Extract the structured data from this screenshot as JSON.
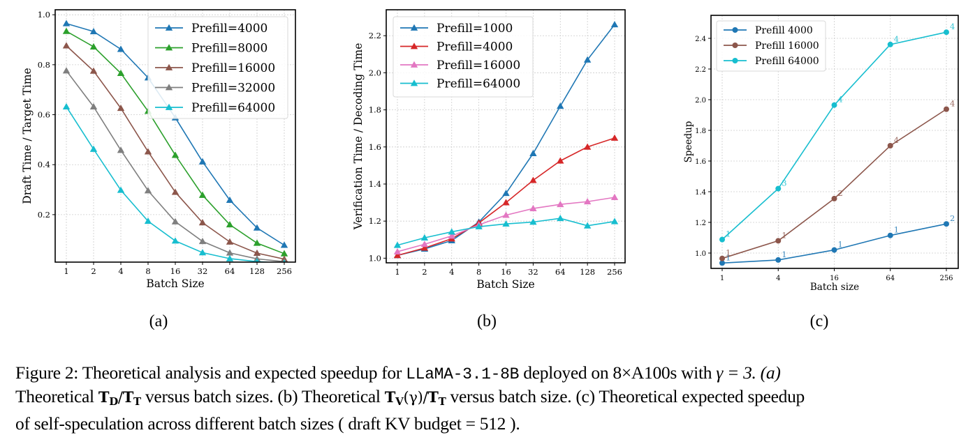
{
  "figure": {
    "sublabels": [
      "(a)",
      "(b)",
      "(c)"
    ],
    "caption": {
      "figure_label": "Figure 2:",
      "line1_a": "Theoretical analysis and expected speedup for",
      "model_name": "LLaMA-3.1-8B",
      "line1_b": "deployed on 8×A100s with",
      "gamma_eq": "γ = 3. (a)",
      "line2_a": "Theoretical",
      "td": "T",
      "td_sub": "D",
      "slash": "/",
      "tt": "T",
      "tt_sub": "T",
      "line2_b": "versus batch sizes. (b) Theoretical",
      "tv": "T",
      "tv_sub": "V",
      "tv_arg": "(γ)",
      "line2_c": "versus batch size. (c) Theoretical expected speedup",
      "line3": "of self-speculation across different batch sizes ( draft KV budget = 512 )."
    }
  },
  "chart_data": [
    {
      "type": "line",
      "id": "a",
      "title": "",
      "xlabel": "Batch Size",
      "ylabel": "Draft Time / Target Time",
      "categories": [
        "1",
        "2",
        "4",
        "8",
        "16",
        "32",
        "64",
        "128",
        "256"
      ],
      "ylim": [
        0.01,
        1.02
      ],
      "yticks": [
        0.2,
        0.4,
        0.6,
        0.8,
        1.0
      ],
      "ytick_labels": [
        "0.2",
        "0.4",
        "0.6",
        "0.8",
        "1.0"
      ],
      "grid": true,
      "legend_position": "top-right",
      "marker": "triangle",
      "series": [
        {
          "name": "Prefill=4000",
          "color": "#1f77b4",
          "values": [
            0.965,
            0.933,
            0.862,
            0.748,
            0.588,
            0.412,
            0.258,
            0.147,
            0.078
          ]
        },
        {
          "name": "Prefill=8000",
          "color": "#2ca02c",
          "values": [
            0.934,
            0.872,
            0.766,
            0.614,
            0.438,
            0.278,
            0.16,
            0.086,
            0.044
          ]
        },
        {
          "name": "Prefill=16000",
          "color": "#8c564b",
          "values": [
            0.876,
            0.775,
            0.626,
            0.452,
            0.29,
            0.168,
            0.091,
            0.046,
            0.022
          ]
        },
        {
          "name": "Prefill=32000",
          "color": "#7f7f7f",
          "values": [
            0.776,
            0.632,
            0.458,
            0.296,
            0.172,
            0.093,
            0.047,
            0.023,
            0.012
          ]
        },
        {
          "name": "Prefill=64000",
          "color": "#17becf",
          "values": [
            0.632,
            0.462,
            0.298,
            0.174,
            0.095,
            0.048,
            0.024,
            0.012,
            0.006
          ]
        }
      ]
    },
    {
      "type": "line",
      "id": "b",
      "title": "",
      "xlabel": "Batch Size",
      "ylabel": "Verification Time / Decoding Time",
      "categories": [
        "1",
        "2",
        "4",
        "8",
        "16",
        "32",
        "64",
        "128",
        "256"
      ],
      "ylim": [
        0.975,
        2.34
      ],
      "yticks": [
        1.0,
        1.2,
        1.4,
        1.6,
        1.8,
        2.0,
        2.2
      ],
      "ytick_labels": [
        "1.0",
        "1.2",
        "1.4",
        "1.6",
        "1.8",
        "2.0",
        "2.2"
      ],
      "grid": true,
      "legend_position": "top-left",
      "marker": "triangle",
      "series": [
        {
          "name": "Prefill=1000",
          "color": "#1f77b4",
          "values": [
            1.015,
            1.05,
            1.095,
            1.195,
            1.35,
            1.565,
            1.82,
            2.07,
            2.26
          ]
        },
        {
          "name": "Prefill=4000",
          "color": "#d62728",
          "values": [
            1.015,
            1.055,
            1.105,
            1.19,
            1.3,
            1.42,
            1.525,
            1.6,
            1.648
          ]
        },
        {
          "name": "Prefill=16000",
          "color": "#e377c2",
          "values": [
            1.035,
            1.075,
            1.12,
            1.18,
            1.232,
            1.268,
            1.29,
            1.305,
            1.328
          ]
        },
        {
          "name": "Prefill=64000",
          "color": "#17becf",
          "values": [
            1.07,
            1.11,
            1.142,
            1.17,
            1.185,
            1.195,
            1.215,
            1.175,
            1.198
          ]
        }
      ]
    },
    {
      "type": "line",
      "id": "c",
      "title": "",
      "xlabel": "Batch size",
      "ylabel": "Speedup",
      "categories": [
        "1",
        "4",
        "16",
        "64",
        "256"
      ],
      "ylim": [
        0.9,
        2.55
      ],
      "yticks": [
        1.0,
        1.2,
        1.4,
        1.6,
        1.8,
        2.0,
        2.2,
        2.4
      ],
      "ytick_labels": [
        "1.0",
        "1.2",
        "1.4",
        "1.6",
        "1.8",
        "2.0",
        "2.2",
        "2.4"
      ],
      "grid": true,
      "legend_position": "top-left",
      "marker": "circle",
      "series": [
        {
          "name": "Prefill 4000",
          "color": "#1f77b4",
          "values": [
            0.935,
            0.955,
            1.02,
            1.115,
            1.19
          ],
          "annotations": [
            "1",
            "1",
            "1",
            "1",
            "2"
          ]
        },
        {
          "name": "Prefill 16000",
          "color": "#8c564b",
          "values": [
            0.965,
            1.08,
            1.355,
            1.7,
            1.938
          ],
          "annotations": [
            "1",
            "1",
            "2",
            "4",
            "4"
          ]
        },
        {
          "name": "Prefill 64000",
          "color": "#17becf",
          "values": [
            1.088,
            1.42,
            1.965,
            2.36,
            2.44
          ],
          "annotations": [
            "1",
            "3",
            "4",
            "4",
            "4"
          ]
        }
      ]
    }
  ]
}
